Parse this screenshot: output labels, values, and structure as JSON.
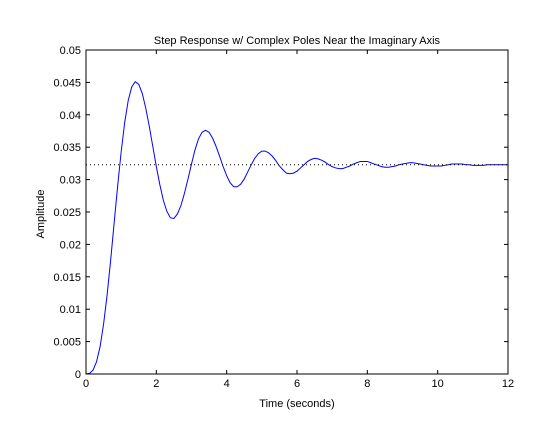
{
  "chart_data": {
    "type": "line",
    "title": "Step Response w/ Complex Poles Near the Imaginary Axis",
    "xlabel": "Time (seconds)",
    "ylabel": "Amplitude",
    "xlim": [
      0,
      12
    ],
    "ylim": [
      0,
      0.05
    ],
    "xticks": [
      "0",
      "2",
      "4",
      "6",
      "8",
      "10",
      "12"
    ],
    "yticks": [
      "0",
      "0.005",
      "0.01",
      "0.015",
      "0.02",
      "0.025",
      "0.03",
      "0.035",
      "0.04",
      "0.045",
      "0.05"
    ],
    "grid": false,
    "legend": "none",
    "series": [
      {
        "color": "#0000ff",
        "style": "solid",
        "x": [
          0,
          0.1,
          0.2,
          0.3,
          0.4,
          0.5,
          0.6,
          0.7,
          0.8,
          0.9,
          1.0,
          1.1,
          1.2,
          1.3,
          1.4,
          1.5,
          1.6,
          1.7,
          1.8,
          1.9,
          2.0,
          2.1,
          2.2,
          2.3,
          2.4,
          2.5,
          2.6,
          2.7,
          2.8,
          2.9,
          3.0,
          3.1,
          3.2,
          3.3,
          3.4,
          3.5,
          3.6,
          3.7,
          3.8,
          3.9,
          4.0,
          4.1,
          4.2,
          4.3,
          4.4,
          4.5,
          4.6,
          4.7,
          4.8,
          4.9,
          5.0,
          5.1,
          5.2,
          5.3,
          5.4,
          5.5,
          5.6,
          5.7,
          5.8,
          5.9,
          6.0,
          6.1,
          6.2,
          6.3,
          6.4,
          6.5,
          6.6,
          6.7,
          6.8,
          6.9,
          7.0,
          7.1,
          7.2,
          7.3,
          7.4,
          7.5,
          7.6,
          7.7,
          7.8,
          7.9,
          8.0,
          8.1,
          8.2,
          8.3,
          8.4,
          8.5,
          8.6,
          8.7,
          8.8,
          8.9,
          9.0,
          9.1,
          9.2,
          9.3,
          9.4,
          9.5,
          9.6,
          9.7,
          9.8,
          9.9,
          10.0,
          10.1,
          10.2,
          10.3,
          10.4,
          10.5,
          10.6,
          10.7,
          10.8,
          10.9,
          11.0,
          11.1,
          11.2,
          11.3,
          11.4,
          11.5,
          11.6,
          11.7,
          11.8,
          11.9,
          12.0
        ],
        "y": [
          0.0,
          0.0001,
          0.0006,
          0.0019,
          0.0042,
          0.0077,
          0.0122,
          0.0175,
          0.0233,
          0.029,
          0.0343,
          0.0388,
          0.0422,
          0.0443,
          0.0451,
          0.0447,
          0.0433,
          0.041,
          0.0382,
          0.0351,
          0.032,
          0.0292,
          0.0268,
          0.0251,
          0.0241,
          0.024,
          0.0247,
          0.026,
          0.0279,
          0.0301,
          0.0324,
          0.0346,
          0.0363,
          0.0373,
          0.0376,
          0.0373,
          0.0364,
          0.0351,
          0.0336,
          0.032,
          0.0306,
          0.0295,
          0.0289,
          0.0289,
          0.0293,
          0.0301,
          0.0312,
          0.0323,
          0.0333,
          0.034,
          0.0344,
          0.0344,
          0.0341,
          0.0336,
          0.0329,
          0.0321,
          0.0315,
          0.031,
          0.0309,
          0.031,
          0.0313,
          0.0318,
          0.0323,
          0.0328,
          0.0331,
          0.0333,
          0.0332,
          0.033,
          0.0327,
          0.0323,
          0.032,
          0.0318,
          0.0317,
          0.0317,
          0.0319,
          0.0321,
          0.0324,
          0.0326,
          0.0328,
          0.0328,
          0.0328,
          0.0326,
          0.0324,
          0.0322,
          0.032,
          0.0319,
          0.0319,
          0.032,
          0.0321,
          0.0323,
          0.0324,
          0.0325,
          0.0326,
          0.0326,
          0.0325,
          0.0324,
          0.0323,
          0.0322,
          0.0321,
          0.0321,
          0.0321,
          0.0321,
          0.0322,
          0.0323,
          0.0324,
          0.0324,
          0.0324,
          0.0324,
          0.0323,
          0.0323,
          0.0322,
          0.0322,
          0.0322,
          0.0322,
          0.0323,
          0.0323,
          0.0323,
          0.0323,
          0.0323,
          0.0323,
          0.0323
        ]
      },
      {
        "color": "#000000",
        "style": "dotted",
        "x": [
          0,
          12
        ],
        "y": [
          0.0323,
          0.0323
        ]
      }
    ]
  }
}
